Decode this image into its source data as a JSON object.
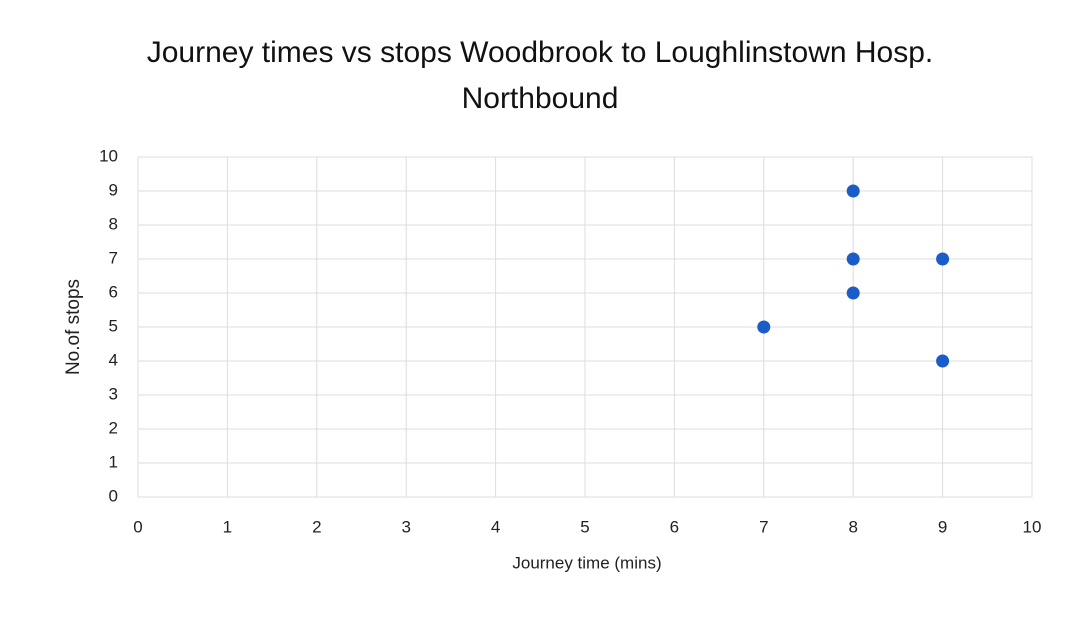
{
  "chart_data": {
    "type": "scatter",
    "title": "Journey times vs stops Woodbrook to Loughlinstown Hosp. Northbound",
    "x_label": "Journey time (mins)",
    "y_label": "No.of stops",
    "series": [
      {
        "color": "#1a5cc8",
        "x": [
          7,
          8,
          8,
          8,
          9,
          9
        ],
        "values": [
          5,
          9,
          7,
          6,
          7,
          4
        ]
      }
    ],
    "xlim": [
      0,
      10
    ],
    "xticks": [
      0,
      1,
      2,
      3,
      4,
      5,
      6,
      7,
      8,
      9,
      10
    ],
    "ylim": [
      0,
      10
    ],
    "yticks": [
      0,
      1,
      2,
      3,
      4,
      5,
      6,
      7,
      8,
      9,
      10
    ],
    "grid": true
  }
}
